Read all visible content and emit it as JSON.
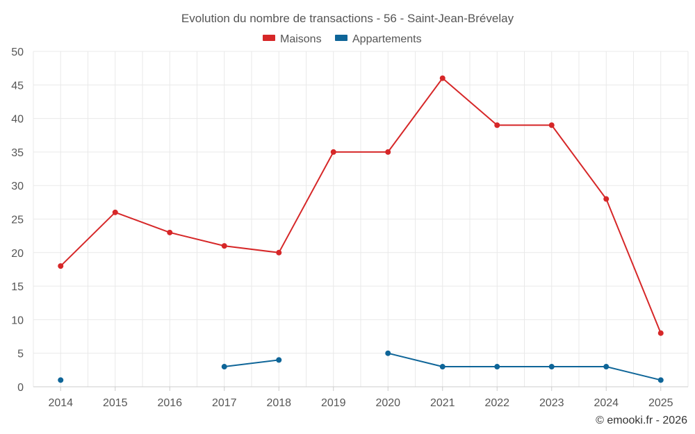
{
  "chart_data": {
    "type": "line",
    "title": "Evolution du nombre de transactions - 56 - Saint-Jean-Brévelay",
    "x": [
      "2014",
      "2015",
      "2016",
      "2017",
      "2018",
      "2019",
      "2020",
      "2021",
      "2022",
      "2023",
      "2024",
      "2025"
    ],
    "series": [
      {
        "name": "Maisons",
        "color": "#d62728",
        "values": [
          18,
          26,
          23,
          21,
          20,
          35,
          35,
          46,
          39,
          39,
          28,
          8
        ]
      },
      {
        "name": "Appartements",
        "color": "#0e6598",
        "values": [
          1,
          null,
          null,
          3,
          4,
          null,
          5,
          3,
          3,
          3,
          3,
          1
        ]
      }
    ],
    "ylim": [
      0,
      50
    ],
    "yticks": [
      "0",
      "5",
      "10",
      "15",
      "20",
      "25",
      "30",
      "35",
      "40",
      "45",
      "50"
    ],
    "xlabel": "",
    "ylabel": "",
    "grid": true,
    "legend_position": "top-center"
  },
  "credit": "© emooki.fr - 2026"
}
